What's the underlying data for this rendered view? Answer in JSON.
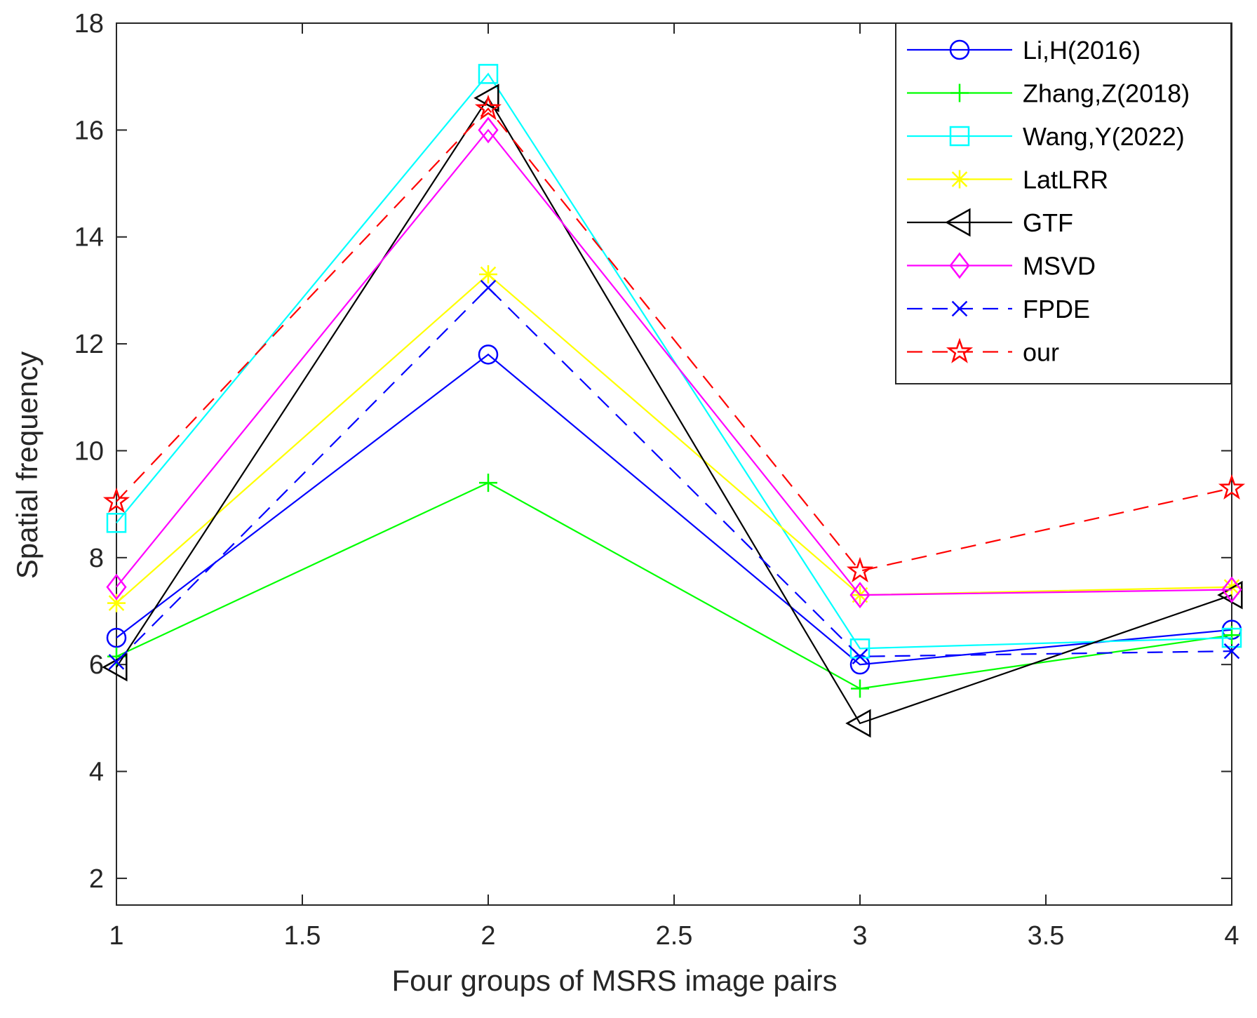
{
  "chart_data": {
    "type": "line",
    "title": "",
    "xlabel": "Four groups of MSRS image pairs",
    "ylabel": "Spatial frequency",
    "xlim": [
      1,
      4
    ],
    "ylim": [
      1.5,
      18
    ],
    "xticks": [
      1,
      1.5,
      2,
      2.5,
      3,
      3.5,
      4
    ],
    "xtick_labels": [
      "1",
      "1.5",
      "2",
      "2.5",
      "3",
      "3.5",
      "4"
    ],
    "yticks": [
      2,
      4,
      6,
      8,
      10,
      12,
      14,
      16,
      18
    ],
    "ytick_labels": [
      "2",
      "4",
      "6",
      "8",
      "10",
      "12",
      "14",
      "16",
      "18"
    ],
    "grid": false,
    "legend_position": "top-right",
    "x": [
      1,
      2,
      3,
      4
    ],
    "series": [
      {
        "name": "Li,H(2016)",
        "color": "#0000ff",
        "dash": "solid",
        "marker": "circle",
        "values": [
          6.5,
          11.8,
          6.0,
          6.65
        ]
      },
      {
        "name": "Zhang,Z(2018)",
        "color": "#00ff00",
        "dash": "solid",
        "marker": "plus",
        "values": [
          6.15,
          9.4,
          5.55,
          6.55
        ]
      },
      {
        "name": "Wang,Y(2022)",
        "color": "#00ffff",
        "dash": "solid",
        "marker": "square",
        "values": [
          8.65,
          17.05,
          6.3,
          6.5
        ]
      },
      {
        "name": "LatLRR",
        "color": "#ffff00",
        "dash": "solid",
        "marker": "asterisk",
        "values": [
          7.15,
          13.3,
          7.3,
          7.45
        ]
      },
      {
        "name": "GTF",
        "color": "#000000",
        "dash": "solid",
        "marker": "triangle-left",
        "values": [
          5.95,
          16.6,
          4.9,
          7.3
        ]
      },
      {
        "name": "MSVD",
        "color": "#ff00ff",
        "dash": "solid",
        "marker": "diamond",
        "values": [
          7.45,
          16.0,
          7.3,
          7.4
        ]
      },
      {
        "name": "FPDE",
        "color": "#0000ff",
        "dash": "dashed",
        "marker": "x",
        "values": [
          6.05,
          13.05,
          6.15,
          6.25
        ]
      },
      {
        "name": "our",
        "color": "#ff0000",
        "dash": "dashed",
        "marker": "pentagram",
        "values": [
          9.05,
          16.4,
          7.75,
          9.3
        ]
      }
    ]
  }
}
